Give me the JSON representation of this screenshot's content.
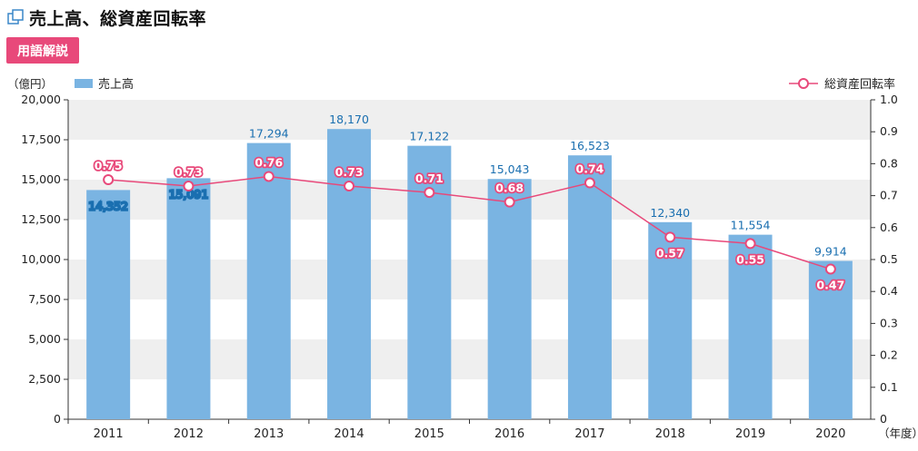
{
  "header": {
    "title": "売上高、総資産回転率",
    "icon": "window-icon"
  },
  "glossary_button": {
    "label": "用語解説",
    "color": "#e8497a"
  },
  "chart_data": {
    "type": "bar+line",
    "categories": [
      "2011",
      "2012",
      "2013",
      "2014",
      "2015",
      "2016",
      "2017",
      "2018",
      "2019",
      "2020"
    ],
    "series": [
      {
        "name": "売上高",
        "type": "bar",
        "axis": "left",
        "color": "#7ab4e2",
        "values": [
          14352,
          15091,
          17294,
          18170,
          17122,
          15043,
          16523,
          12340,
          11554,
          9914
        ],
        "labels": [
          "14,352",
          "15,091",
          "17,294",
          "18,170",
          "17,122",
          "15,043",
          "16,523",
          "12,340",
          "11,554",
          "9,914"
        ]
      },
      {
        "name": "総資産回転率",
        "type": "line",
        "axis": "right",
        "color": "#e8497a",
        "values": [
          0.75,
          0.73,
          0.76,
          0.73,
          0.71,
          0.68,
          0.74,
          0.57,
          0.55,
          0.47
        ],
        "labels": [
          "0.75",
          "0.73",
          "0.76",
          "0.73",
          "0.71",
          "0.68",
          "0.74",
          "0.57",
          "0.55",
          "0.47"
        ]
      }
    ],
    "y_left": {
      "unit": "（億円）",
      "ylim": [
        0,
        20000
      ],
      "ticks": [
        "0",
        "2,500",
        "5,000",
        "7,500",
        "10,000",
        "12,500",
        "15,000",
        "17,500",
        "20,000"
      ]
    },
    "y_right": {
      "ylim": [
        0,
        1.0
      ],
      "ticks": [
        "0",
        "0.1",
        "0.2",
        "0.3",
        "0.4",
        "0.5",
        "0.6",
        "0.7",
        "0.8",
        "0.9",
        "1.0"
      ]
    },
    "x_unit": "（年度）",
    "legend": {
      "bar": "売上高",
      "line": "総資産回転率"
    },
    "grid": "alternating horizontal bands",
    "band_color": "#efefef"
  }
}
